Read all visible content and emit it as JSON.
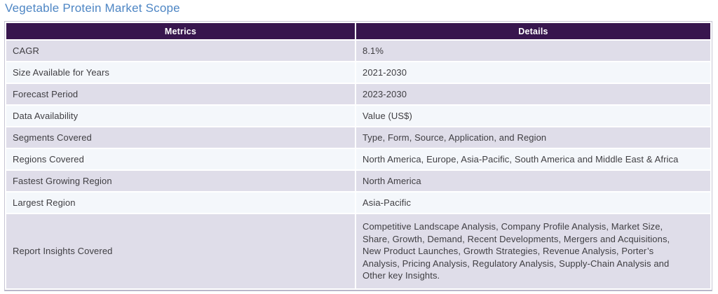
{
  "page": {
    "title": "Vegetable Protein Market Scope"
  },
  "table": {
    "headers": [
      "Metrics",
      "Details"
    ],
    "rows": [
      {
        "metric": "CAGR",
        "detail": "8.1%"
      },
      {
        "metric": "Size Available for Years",
        "detail": "2021-2030"
      },
      {
        "metric": "Forecast Period",
        "detail": "2023-2030"
      },
      {
        "metric": "Data Availability",
        "detail": "Value (US$)"
      },
      {
        "metric": "Segments Covered",
        "detail": "Type, Form, Source, Application, and Region"
      },
      {
        "metric": "Regions Covered",
        "detail": "North America, Europe, Asia-Pacific, South America and Middle East & Africa"
      },
      {
        "metric": "Fastest Growing Region",
        "detail": "North America"
      },
      {
        "metric": "Largest Region",
        "detail": "Asia-Pacific"
      },
      {
        "metric": "Report Insights Covered",
        "detail": "Competitive Landscape Analysis, Company Profile Analysis, Market Size, Share, Growth, Demand, Recent Developments, Mergers and Acquisitions, New Product Launches, Growth Strategies, Revenue Analysis, Porter’s Analysis, Pricing Analysis, Regulatory Analysis, Supply-Chain Analysis and Other key Insights."
      }
    ]
  },
  "colors": {
    "title_color": "#4e86c4",
    "header_bg": "#38164e",
    "header_text": "#ffffff",
    "row_odd_bg": "#dfdde9",
    "row_even_bg": "#f4f7fb",
    "body_text": "#3f3e42",
    "table_border": "#c7c5d3"
  }
}
